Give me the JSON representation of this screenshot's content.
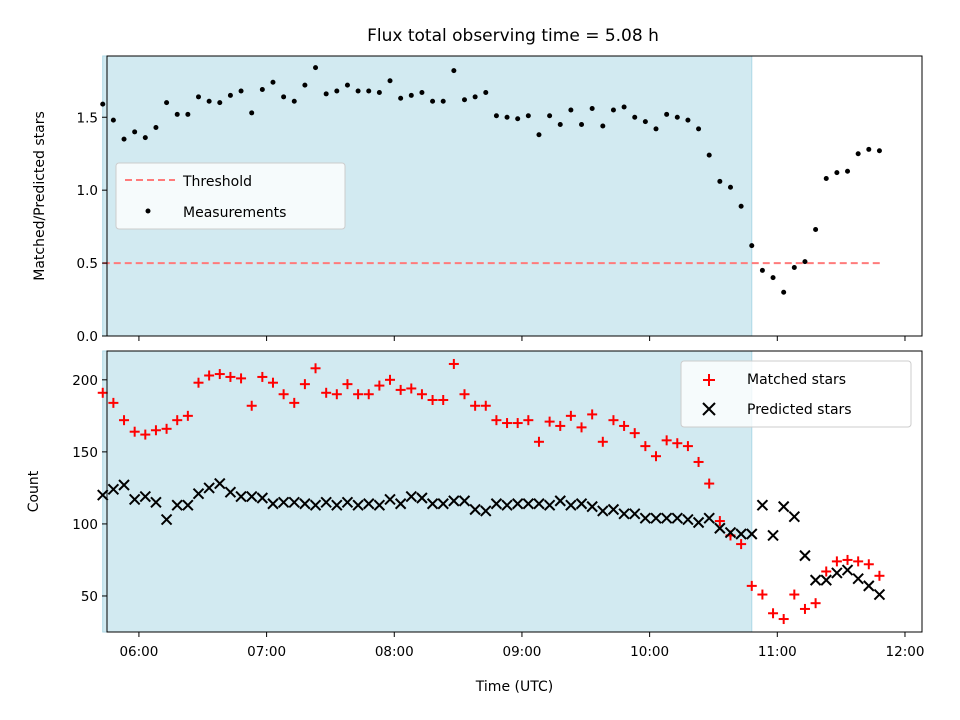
{
  "chart_data": [
    {
      "type": "scatter",
      "panel": "top",
      "title": "Flux total observing time = 5.08 h",
      "ylabel": "Matched/Predicted stars",
      "ylim": [
        0,
        1.92
      ],
      "xlim": [
        "05:45",
        "12:08"
      ],
      "yticks": [
        "0.0",
        "0.5",
        "1.0",
        "1.5"
      ],
      "shaded_interval": [
        "05:43",
        "10:48"
      ],
      "shade_color": "#add8e6",
      "threshold": {
        "name": "Threshold",
        "value": 0.5,
        "x_range": [
          "05:43",
          "11:50"
        ],
        "color": "#ff7b7b"
      },
      "legend": {
        "position": "center-left",
        "entries": [
          "Threshold",
          "Measurements"
        ]
      },
      "series": [
        {
          "name": "Measurements",
          "color": "#000000",
          "x": [
            "05:43",
            "05:48",
            "05:53",
            "05:58",
            "06:03",
            "06:08",
            "06:13",
            "06:18",
            "06:23",
            "06:28",
            "06:33",
            "06:38",
            "06:43",
            "06:48",
            "06:53",
            "06:58",
            "07:03",
            "07:08",
            "07:13",
            "07:18",
            "07:23",
            "07:28",
            "07:33",
            "07:38",
            "07:43",
            "07:48",
            "07:53",
            "07:58",
            "08:03",
            "08:08",
            "08:13",
            "08:18",
            "08:23",
            "08:28",
            "08:33",
            "08:38",
            "08:43",
            "08:48",
            "08:53",
            "08:58",
            "09:03",
            "09:08",
            "09:13",
            "09:18",
            "09:23",
            "09:28",
            "09:33",
            "09:38",
            "09:43",
            "09:48",
            "09:53",
            "09:58",
            "10:03",
            "10:08",
            "10:13",
            "10:18",
            "10:23",
            "10:28",
            "10:33",
            "10:38",
            "10:43",
            "10:48",
            "10:53",
            "10:58",
            "11:03",
            "11:08",
            "11:13",
            "11:18",
            "11:23",
            "11:28",
            "11:33",
            "11:38",
            "11:43",
            "11:48"
          ],
          "y": [
            1.59,
            1.48,
            1.35,
            1.4,
            1.36,
            1.43,
            1.6,
            1.52,
            1.52,
            1.64,
            1.61,
            1.6,
            1.65,
            1.68,
            1.53,
            1.69,
            1.74,
            1.64,
            1.61,
            1.72,
            1.84,
            1.66,
            1.68,
            1.72,
            1.68,
            1.68,
            1.67,
            1.75,
            1.63,
            1.65,
            1.67,
            1.61,
            1.61,
            1.82,
            1.62,
            1.64,
            1.67,
            1.51,
            1.5,
            1.49,
            1.51,
            1.38,
            1.51,
            1.45,
            1.55,
            1.45,
            1.56,
            1.44,
            1.55,
            1.57,
            1.5,
            1.47,
            1.42,
            1.52,
            1.5,
            1.48,
            1.42,
            1.24,
            1.06,
            1.02,
            0.89,
            0.62,
            0.45,
            0.4,
            0.3,
            0.47,
            0.51,
            0.73,
            1.08,
            1.12,
            1.13,
            1.25,
            1.28,
            1.27
          ]
        }
      ]
    },
    {
      "type": "scatter",
      "panel": "bottom",
      "ylabel": "Count",
      "xlabel": "Time (UTC)",
      "ylim": [
        25,
        220
      ],
      "xlim": [
        "05:45",
        "12:08"
      ],
      "yticks": [
        "50",
        "100",
        "150",
        "200"
      ],
      "xticks": [
        "06:00",
        "07:00",
        "08:00",
        "09:00",
        "10:00",
        "11:00",
        "12:00"
      ],
      "shaded_interval": [
        "05:43",
        "10:48"
      ],
      "legend": {
        "position": "top-right",
        "entries": [
          "Matched stars",
          "Predicted stars"
        ]
      },
      "series": [
        {
          "name": "Matched stars",
          "marker": "plus",
          "color": "#ff0000",
          "x": [
            "05:43",
            "05:48",
            "05:53",
            "05:58",
            "06:03",
            "06:08",
            "06:13",
            "06:18",
            "06:23",
            "06:28",
            "06:33",
            "06:38",
            "06:43",
            "06:48",
            "06:53",
            "06:58",
            "07:03",
            "07:08",
            "07:13",
            "07:18",
            "07:23",
            "07:28",
            "07:33",
            "07:38",
            "07:43",
            "07:48",
            "07:53",
            "07:58",
            "08:03",
            "08:08",
            "08:13",
            "08:18",
            "08:23",
            "08:28",
            "08:33",
            "08:38",
            "08:43",
            "08:48",
            "08:53",
            "08:58",
            "09:03",
            "09:08",
            "09:13",
            "09:18",
            "09:23",
            "09:28",
            "09:33",
            "09:38",
            "09:43",
            "09:48",
            "09:53",
            "09:58",
            "10:03",
            "10:08",
            "10:13",
            "10:18",
            "10:23",
            "10:28",
            "10:33",
            "10:38",
            "10:43",
            "10:48",
            "10:53",
            "10:58",
            "11:03",
            "11:08",
            "11:13",
            "11:18",
            "11:23",
            "11:28",
            "11:33",
            "11:38",
            "11:43",
            "11:48"
          ],
          "y": [
            191,
            184,
            172,
            164,
            162,
            165,
            166,
            172,
            175,
            198,
            203,
            204,
            202,
            201,
            182,
            202,
            198,
            190,
            184,
            197,
            208,
            191,
            190,
            197,
            190,
            190,
            196,
            200,
            193,
            194,
            190,
            186,
            186,
            211,
            190,
            182,
            182,
            172,
            170,
            170,
            172,
            157,
            171,
            168,
            175,
            167,
            176,
            157,
            172,
            168,
            163,
            154,
            147,
            158,
            156,
            154,
            143,
            128,
            102,
            92,
            86,
            57,
            51,
            38,
            34,
            51,
            41,
            45,
            67,
            74,
            75,
            74,
            72,
            64
          ]
        },
        {
          "name": "Predicted stars",
          "marker": "x",
          "color": "#000000",
          "x": [
            "05:43",
            "05:48",
            "05:53",
            "05:58",
            "06:03",
            "06:08",
            "06:13",
            "06:18",
            "06:23",
            "06:28",
            "06:33",
            "06:38",
            "06:43",
            "06:48",
            "06:53",
            "06:58",
            "07:03",
            "07:08",
            "07:13",
            "07:18",
            "07:23",
            "07:28",
            "07:33",
            "07:38",
            "07:43",
            "07:48",
            "07:53",
            "07:58",
            "08:03",
            "08:08",
            "08:13",
            "08:18",
            "08:23",
            "08:28",
            "08:33",
            "08:38",
            "08:43",
            "08:48",
            "08:53",
            "08:58",
            "09:03",
            "09:08",
            "09:13",
            "09:18",
            "09:23",
            "09:28",
            "09:33",
            "09:38",
            "09:43",
            "09:48",
            "09:53",
            "09:58",
            "10:03",
            "10:08",
            "10:13",
            "10:18",
            "10:23",
            "10:28",
            "10:33",
            "10:38",
            "10:43",
            "10:48",
            "10:53",
            "10:58",
            "11:03",
            "11:08",
            "11:13",
            "11:18",
            "11:23",
            "11:28",
            "11:33",
            "11:38",
            "11:43",
            "11:48"
          ],
          "y": [
            120,
            124,
            127,
            117,
            119,
            115,
            103,
            113,
            113,
            121,
            125,
            128,
            122,
            119,
            119,
            118,
            114,
            115,
            115,
            114,
            113,
            115,
            113,
            115,
            113,
            114,
            113,
            117,
            114,
            119,
            118,
            114,
            114,
            116,
            116,
            110,
            109,
            114,
            113,
            114,
            114,
            114,
            113,
            116,
            113,
            114,
            112,
            109,
            110,
            107,
            107,
            104,
            104,
            104,
            104,
            103,
            101,
            104,
            97,
            94,
            93,
            93,
            113,
            92,
            112,
            105,
            78,
            61,
            61,
            66,
            68,
            62,
            57,
            51
          ]
        }
      ]
    }
  ]
}
